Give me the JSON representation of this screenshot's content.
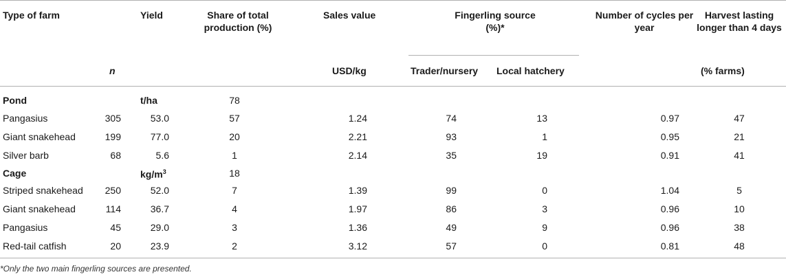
{
  "headers": {
    "type_of_farm": "Type of farm",
    "yield": "Yield",
    "share": "Share of total production (%)",
    "sales_value": "Sales value",
    "fingerling_source": "Fingerling source (%)*",
    "cycles": "Number of cycles per year",
    "harvest": "Harvest lasting longer than 4 days",
    "n": "n",
    "usd_kg": "USD/kg",
    "trader": "Trader/nursery",
    "hatchery": "Local hatchery",
    "pct_farms": "(% farms)"
  },
  "pond": {
    "label": "Pond",
    "unit": "t/ha",
    "share": "78",
    "rows": [
      {
        "name": "Pangasius",
        "n": "305",
        "yield": "53.0",
        "share": "57",
        "sales": "1.24",
        "trader": "74",
        "hatchery": "13",
        "cycles": "0.97",
        "harvest": "47"
      },
      {
        "name": "Giant snakehead",
        "n": "199",
        "yield": "77.0",
        "share": "20",
        "sales": "2.21",
        "trader": "93",
        "hatchery": "1",
        "cycles": "0.95",
        "harvest": "21"
      },
      {
        "name": "Silver barb",
        "n": "68",
        "yield": "5.6",
        "share": "1",
        "sales": "2.14",
        "trader": "35",
        "hatchery": "19",
        "cycles": "0.91",
        "harvest": "41"
      }
    ]
  },
  "cage": {
    "label": "Cage",
    "unit": "kg/m",
    "unit_sup": "3",
    "share": "18",
    "rows": [
      {
        "name": "Striped snakehead",
        "n": "250",
        "yield": "52.0",
        "share": "7",
        "sales": "1.39",
        "trader": "99",
        "hatchery": "0",
        "cycles": "1.04",
        "harvest": "5"
      },
      {
        "name": "Giant snakehead",
        "n": "114",
        "yield": "36.7",
        "share": "4",
        "sales": "1.97",
        "trader": "86",
        "hatchery": "3",
        "cycles": "0.96",
        "harvest": "10"
      },
      {
        "name": "Pangasius",
        "n": "45",
        "yield": "29.0",
        "share": "3",
        "sales": "1.36",
        "trader": "49",
        "hatchery": "9",
        "cycles": "0.96",
        "harvest": "38"
      },
      {
        "name": "Red-tail catfish",
        "n": "20",
        "yield": "23.9",
        "share": "2",
        "sales": "3.12",
        "trader": "57",
        "hatchery": "0",
        "cycles": "0.81",
        "harvest": "48"
      }
    ]
  },
  "footnote": "*Only the two main fingerling sources are presented."
}
